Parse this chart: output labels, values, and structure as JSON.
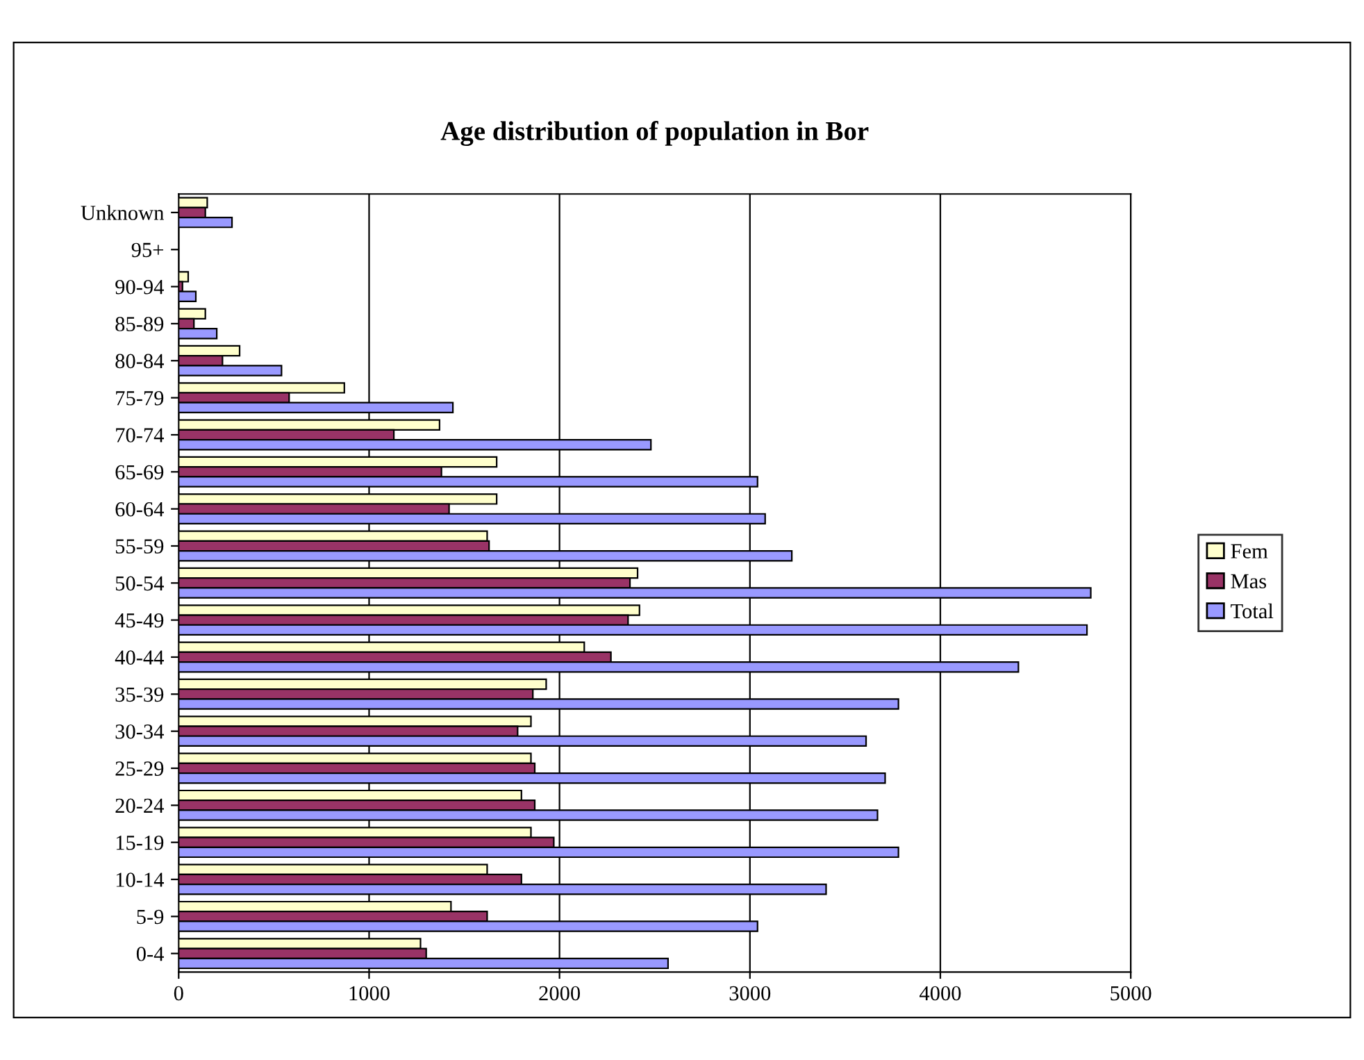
{
  "chart_data": {
    "type": "bar",
    "orientation": "horizontal",
    "title": "Age distribution of population in Bor",
    "categories": [
      "Unknown",
      "95+",
      "90-94",
      "85-89",
      "80-84",
      "75-79",
      "70-74",
      "65-69",
      "60-64",
      "55-59",
      "50-54",
      "45-49",
      "40-44",
      "35-39",
      "30-34",
      "25-29",
      "20-24",
      "15-19",
      "10-14",
      "5-9",
      "0-4"
    ],
    "series": [
      {
        "name": "Fem",
        "color": "#ffffcc",
        "values": [
          150,
          0,
          50,
          140,
          320,
          870,
          1370,
          1670,
          1670,
          1620,
          2410,
          2420,
          2130,
          1930,
          1850,
          1850,
          1800,
          1850,
          1620,
          1430,
          1270
        ]
      },
      {
        "name": "Mas",
        "color": "#993366",
        "values": [
          140,
          0,
          20,
          80,
          230,
          580,
          1130,
          1380,
          1420,
          1630,
          2370,
          2360,
          2270,
          1860,
          1780,
          1870,
          1870,
          1970,
          1800,
          1620,
          1300
        ]
      },
      {
        "name": "Total",
        "color": "#9999ff",
        "values": [
          280,
          0,
          90,
          200,
          540,
          1440,
          2480,
          3040,
          3080,
          3220,
          4790,
          4770,
          4410,
          3780,
          3610,
          3710,
          3670,
          3780,
          3400,
          3040,
          2570
        ]
      }
    ],
    "xlim": [
      0,
      5000
    ],
    "xticks": [
      0,
      1000,
      2000,
      3000,
      4000,
      5000
    ],
    "grid": "x",
    "legend": "right"
  }
}
